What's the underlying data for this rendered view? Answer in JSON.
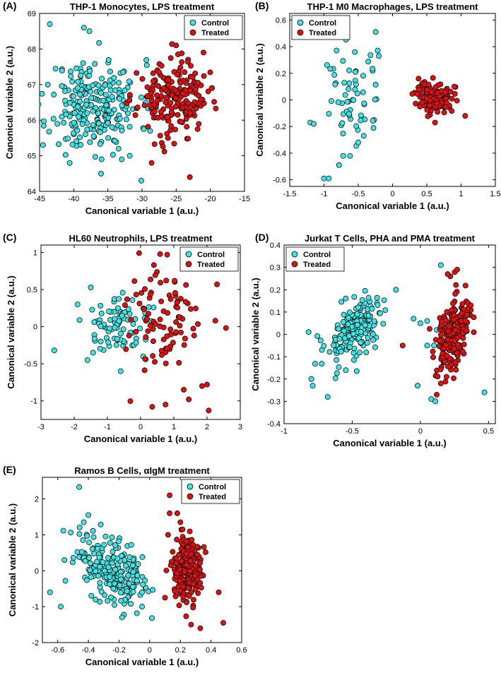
{
  "colors": {
    "control": "#3fe3e3",
    "treated": "#e01010",
    "edge": "#000000"
  },
  "chart_data": [
    {
      "panel": "(A)",
      "type": "scatter",
      "title": "THP-1 Monocytes, LPS treatment",
      "xlabel": "Canonical variable 1 (a.u.)",
      "ylabel": "Canonical variable 2 (a.u.)",
      "xlim": [
        -45,
        -15
      ],
      "ylim": [
        64,
        69
      ],
      "xticks": [
        -45,
        -40,
        -35,
        -30,
        -25,
        -20,
        -15
      ],
      "yticks": [
        64,
        65,
        66,
        67,
        68,
        69
      ],
      "legend_location": "top-right",
      "series": [
        {
          "name": "Control",
          "cluster": {
            "count": 250,
            "center": [
              -37,
              66.4
            ],
            "sd": [
              3.3,
              0.65
            ],
            "corr": 0,
            "seed": 11
          },
          "points": [
            [
              -43.5,
              68.7
            ],
            [
              -38.5,
              68.6
            ],
            [
              -37.7,
              68.5
            ],
            [
              -36.0,
              64.5
            ],
            [
              -30.1,
              64.3
            ],
            [
              -31.8,
              65.0
            ],
            [
              -44.5,
              65.3
            ],
            [
              -43.8,
              67.0
            ]
          ]
        },
        {
          "name": "Treated",
          "cluster": {
            "count": 200,
            "center": [
              -25.5,
              66.6
            ],
            "sd": [
              2.5,
              0.5
            ],
            "corr": 0,
            "seed": 23
          },
          "points": [
            [
              -25.0,
              68.1
            ],
            [
              -21.0,
              67.9
            ],
            [
              -23.0,
              64.4
            ],
            [
              -28.6,
              64.8
            ],
            [
              -26.2,
              65.5
            ],
            [
              -19.8,
              66.9
            ]
          ]
        }
      ]
    },
    {
      "panel": "(B)",
      "type": "scatter",
      "title": "THP-1 M0 Macrophages, LPS treatment",
      "xlabel": "Canonical variable 1 (a.u.)",
      "ylabel": "Canonical variable 2 (a.u.)",
      "xlim": [
        -1.5,
        1.5
      ],
      "ylim": [
        -0.65,
        0.65
      ],
      "xticks": [
        -1.5,
        -1,
        -0.5,
        0,
        0.5,
        1,
        1.5
      ],
      "yticks": [
        -0.6,
        -0.4,
        -0.2,
        0,
        0.2,
        0.4,
        0.6
      ],
      "legend_location": "top-left",
      "series": [
        {
          "name": "Control",
          "cluster": {
            "count": 60,
            "center": [
              -0.6,
              0.02
            ],
            "sd": [
              0.22,
              0.2
            ],
            "corr": 0,
            "seed": 31
          },
          "points": [
            [
              -1.0,
              -0.59
            ],
            [
              -0.93,
              -0.59
            ],
            [
              -0.78,
              -0.49
            ],
            [
              -1.2,
              -0.17
            ],
            [
              -1.15,
              -0.18
            ],
            [
              -0.55,
              0.36
            ],
            [
              -0.2,
              0.33
            ],
            [
              -0.72,
              -0.42
            ],
            [
              -0.62,
              -0.42
            ],
            [
              -0.42,
              -0.27
            ]
          ]
        },
        {
          "name": "Treated",
          "cluster": {
            "count": 110,
            "center": [
              0.62,
              0.02
            ],
            "sd": [
              0.14,
              0.06
            ],
            "corr": 0,
            "seed": 37
          },
          "points": [
            [
              0.38,
              0.16
            ],
            [
              0.4,
              -0.05
            ],
            [
              1.06,
              -0.12
            ],
            [
              0.9,
              0.1
            ],
            [
              0.62,
              -0.17
            ]
          ]
        }
      ]
    },
    {
      "panel": "(C)",
      "type": "scatter",
      "title": "HL60 Neutrophils, LPS treatment",
      "xlabel": "Canonical variable 1 (a.u.)",
      "ylabel": "Canonical variable 2 (a.u.)",
      "xlim": [
        -3,
        3
      ],
      "ylim": [
        -1.25,
        1.1
      ],
      "xticks": [
        -3,
        -2,
        -1,
        0,
        1,
        2,
        3
      ],
      "yticks": [
        -1,
        -0.5,
        0,
        0.5,
        1
      ],
      "legend_location": "top-right",
      "series": [
        {
          "name": "Control",
          "cluster": {
            "count": 85,
            "center": [
              -0.55,
              0.02
            ],
            "sd": [
              0.55,
              0.18
            ],
            "corr": 0,
            "seed": 41
          },
          "points": [
            [
              -2.6,
              -0.32
            ],
            [
              -1.5,
              0.53
            ],
            [
              -1.9,
              0.3
            ],
            [
              -0.6,
              -0.6
            ],
            [
              -1.6,
              -0.45
            ]
          ]
        },
        {
          "name": "Treated",
          "cluster": {
            "count": 90,
            "center": [
              0.65,
              0.1
            ],
            "sd": [
              0.6,
              0.35
            ],
            "corr": 0,
            "seed": 47
          },
          "points": [
            [
              0.8,
              0.97
            ],
            [
              0.4,
              0.83
            ],
            [
              2.3,
              0.57
            ],
            [
              2.05,
              -1.13
            ],
            [
              0.35,
              -1.08
            ],
            [
              0.75,
              -1.05
            ],
            [
              1.45,
              -0.98
            ],
            [
              1.3,
              -0.85
            ],
            [
              2.0,
              -0.78
            ],
            [
              1.85,
              -0.8
            ],
            [
              2.25,
              0.08
            ]
          ]
        }
      ]
    },
    {
      "panel": "(D)",
      "type": "scatter",
      "title": "Jurkat T Cells, PHA and PMA treatment",
      "xlabel": "Canonical variable 1 (a.u.)",
      "ylabel": "Canonical variable 2 (a.u.)",
      "xlim": [
        -1,
        0.55
      ],
      "ylim": [
        -0.4,
        0.4
      ],
      "xticks": [
        -1,
        -0.5,
        0,
        0.5
      ],
      "xticklabels": [
        "-1",
        "-0.5",
        "0",
        "0.5"
      ],
      "yticks": [
        -0.4,
        -0.3,
        -0.2,
        -0.1,
        0,
        0.1,
        0.2,
        0.3,
        0.4
      ],
      "legend_location": "top-left",
      "series": [
        {
          "name": "Control",
          "cluster": {
            "count": 190,
            "center": [
              -0.48,
              0.02
            ],
            "sd": [
              0.11,
              0.08
            ],
            "corr": 0.55,
            "seed": 53
          },
          "points": [
            [
              -0.8,
              -0.2
            ],
            [
              -0.79,
              -0.23
            ],
            [
              -0.68,
              -0.28
            ],
            [
              0.15,
              0.31
            ],
            [
              0.08,
              -0.29
            ],
            [
              0.11,
              -0.3
            ],
            [
              0.47,
              -0.26
            ],
            [
              0.0,
              0.05
            ],
            [
              0.05,
              0.06
            ],
            [
              0.05,
              -0.05
            ],
            [
              -0.02,
              -0.23
            ],
            [
              0.1,
              -0.05
            ],
            [
              0.12,
              0.02
            ],
            [
              -0.05,
              0.07
            ],
            [
              -0.82,
              0.01
            ]
          ]
        },
        {
          "name": "Treated",
          "cluster": {
            "count": 230,
            "center": [
              0.24,
              -0.01
            ],
            "sd": [
              0.06,
              0.085
            ],
            "corr": 0.5,
            "seed": 59
          },
          "points": [
            [
              0.27,
              0.29
            ],
            [
              0.22,
              0.26
            ],
            [
              0.2,
              0.27
            ],
            [
              0.15,
              -0.22
            ],
            [
              0.12,
              -0.27
            ],
            [
              0.37,
              0.13
            ],
            [
              -0.13,
              -0.05
            ]
          ]
        }
      ]
    },
    {
      "panel": "(E)",
      "type": "scatter",
      "title": "Ramos B Cells, αIgM treatment",
      "xlabel": "Canonical variable 1 (a.u.)",
      "ylabel": "Canonical variable 2 (a.u.)",
      "xlim": [
        -0.7,
        0.6
      ],
      "ylim": [
        -2,
        2.6
      ],
      "xticks": [
        -0.6,
        -0.4,
        -0.2,
        0,
        0.2,
        0.4,
        0.6
      ],
      "yticks": [
        -2,
        -1,
        0,
        1,
        2
      ],
      "legend_location": "top-right",
      "series": [
        {
          "name": "Control",
          "cluster": {
            "count": 220,
            "center": [
              -0.25,
              0.05
            ],
            "sd": [
              0.12,
              0.5
            ],
            "corr": -0.45,
            "seed": 61
          },
          "points": [
            [
              -0.46,
              2.33
            ],
            [
              -0.4,
              1.55
            ],
            [
              -0.43,
              1.35
            ],
            [
              -0.65,
              -0.6
            ],
            [
              -0.58,
              -1.0
            ],
            [
              -0.18,
              -1.3
            ],
            [
              -0.05,
              -1.0
            ],
            [
              -0.55,
              -0.28
            ],
            [
              -0.12,
              0.72
            ]
          ]
        },
        {
          "name": "Treated",
          "cluster": {
            "count": 220,
            "center": [
              0.24,
              -0.05
            ],
            "sd": [
              0.045,
              0.45
            ],
            "corr": 0,
            "seed": 67
          },
          "points": [
            [
              0.13,
              2.1
            ],
            [
              0.13,
              1.6
            ],
            [
              0.18,
              1.6
            ],
            [
              0.2,
              1.35
            ],
            [
              0.48,
              -1.45
            ],
            [
              0.33,
              -1.6
            ],
            [
              0.27,
              -1.5
            ],
            [
              0.45,
              -0.6
            ],
            [
              0.1,
              -0.75
            ],
            [
              0.12,
              1.0
            ]
          ]
        }
      ]
    }
  ]
}
